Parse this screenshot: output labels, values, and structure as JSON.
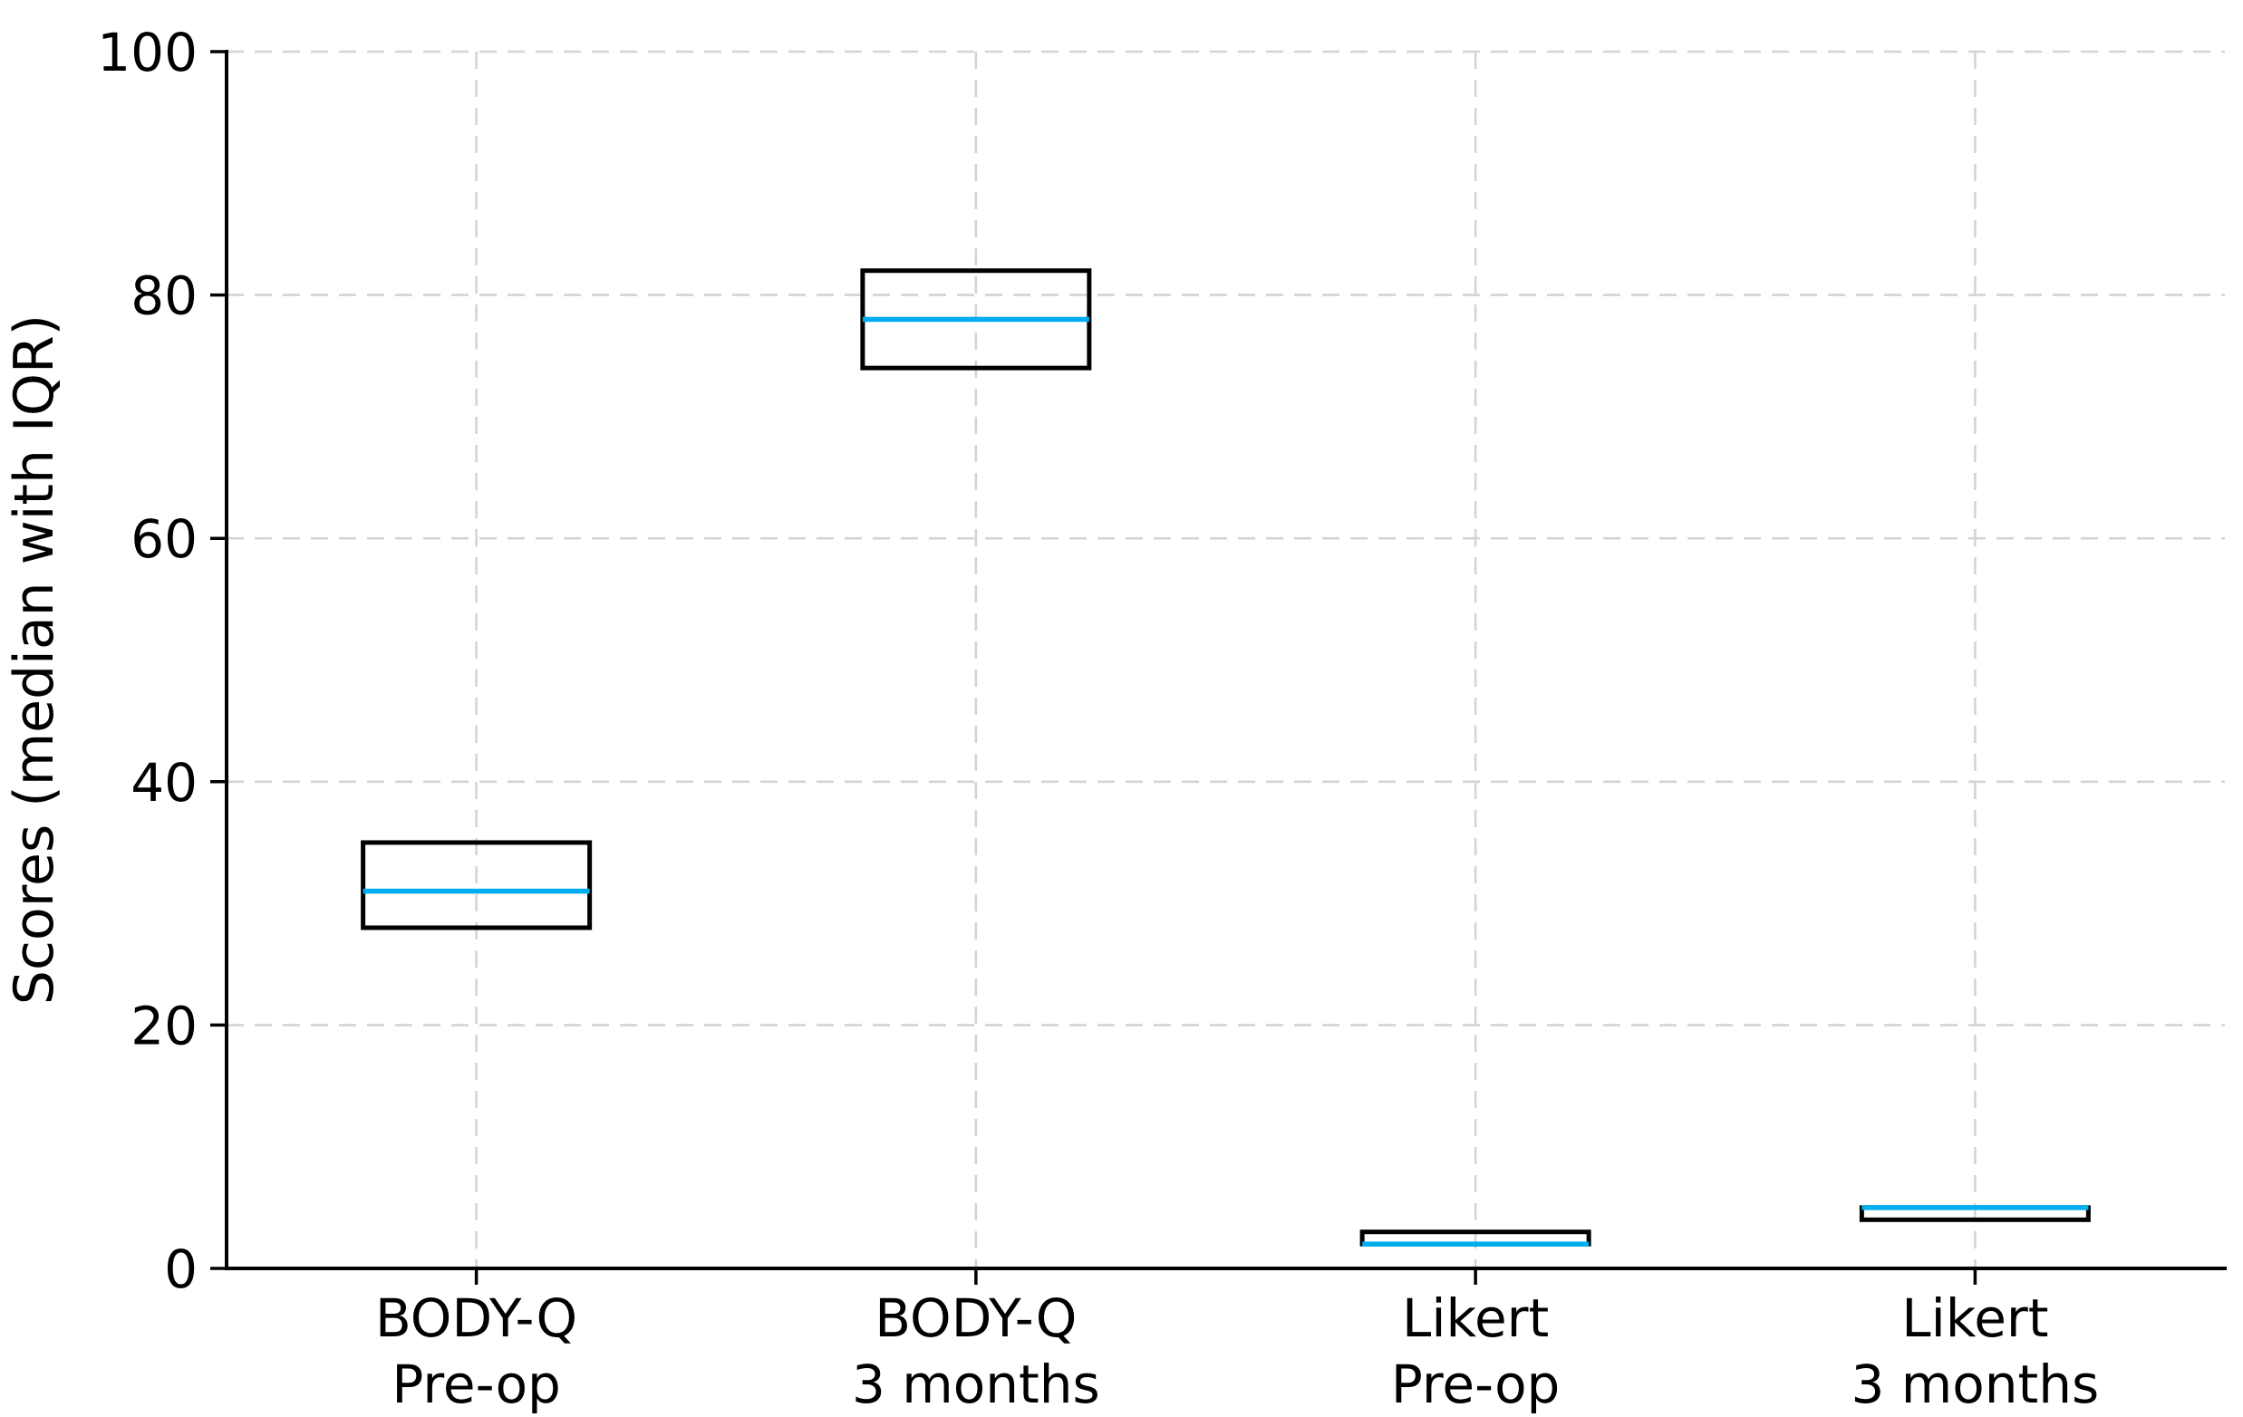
{
  "chart_data": {
    "type": "box",
    "title": "",
    "ylabel": "Scores (median with IQR)",
    "xlabel": "",
    "ylim": [
      0,
      100
    ],
    "yticks": [
      0,
      20,
      40,
      60,
      80,
      100
    ],
    "grid": true,
    "legend_position": "none",
    "categories": [
      {
        "line1": "BODY-Q",
        "line2": "Pre-op"
      },
      {
        "line1": "BODY-Q",
        "line2": "3 months"
      },
      {
        "line1": "Likert",
        "line2": "Pre-op"
      },
      {
        "line1": "Likert",
        "line2": "3 months"
      }
    ],
    "series": [
      {
        "name": "BODY-Q Pre-op",
        "q1": 28,
        "median": 31,
        "q3": 35
      },
      {
        "name": "BODY-Q 3 months",
        "q1": 74,
        "median": 78,
        "q3": 82
      },
      {
        "name": "Likert Pre-op",
        "q1": 2,
        "median": 2,
        "q3": 3
      },
      {
        "name": "Likert 3 months",
        "q1": 4,
        "median": 5,
        "q3": 5
      }
    ],
    "colors": {
      "median": "#00AEEF",
      "box_edge": "#000000",
      "grid": "#d4d4d4",
      "axis": "#000000",
      "text": "#000000",
      "background": "#ffffff"
    }
  }
}
